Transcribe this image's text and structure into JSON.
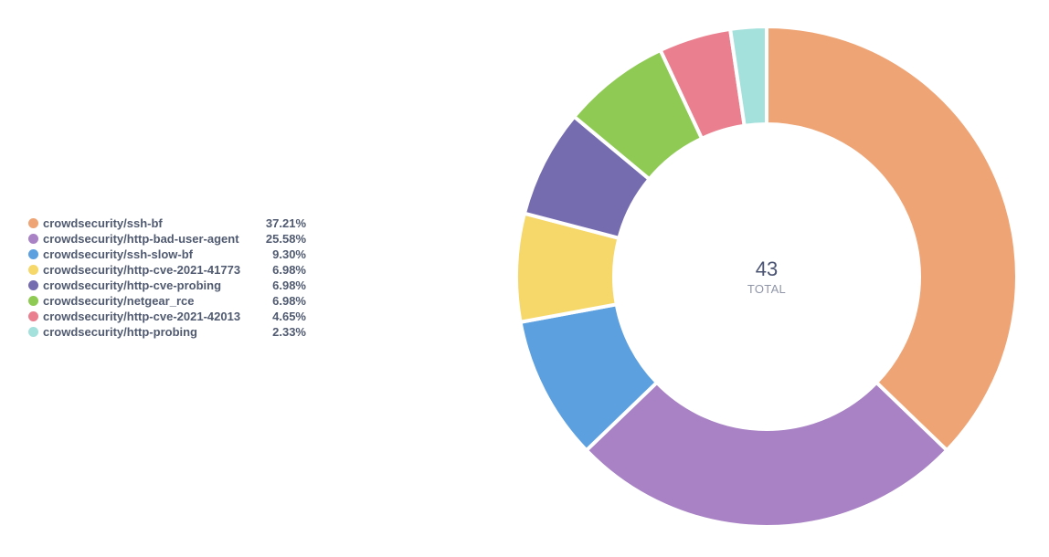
{
  "chart_data": {
    "type": "pie",
    "variant": "donut",
    "total_value": "43",
    "total_label": "TOTAL",
    "legend_position": "left",
    "slices": [
      {
        "label": "crowdsecurity/ssh-bf",
        "percent_label": "37.21%",
        "value": 16,
        "color": "#eea474"
      },
      {
        "label": "crowdsecurity/http-bad-user-agent",
        "percent_label": "25.58%",
        "value": 11,
        "color": "#a882c4"
      },
      {
        "label": "crowdsecurity/ssh-slow-bf",
        "percent_label": "9.30%",
        "value": 4,
        "color": "#5ca0e0"
      },
      {
        "label": "crowdsecurity/http-cve-2021-41773",
        "percent_label": "6.98%",
        "value": 3,
        "color": "#f5d76a"
      },
      {
        "label": "crowdsecurity/http-cve-probing",
        "percent_label": "6.98%",
        "value": 3,
        "color": "#756cb0"
      },
      {
        "label": "crowdsecurity/netgear_rce",
        "percent_label": "6.98%",
        "value": 3,
        "color": "#8fca54"
      },
      {
        "label": "crowdsecurity/http-cve-2021-42013",
        "percent_label": "4.65%",
        "value": 2,
        "color": "#ea808f"
      },
      {
        "label": "crowdsecurity/http-probing",
        "percent_label": "2.33%",
        "value": 1,
        "color": "#a4e0dc"
      }
    ]
  }
}
